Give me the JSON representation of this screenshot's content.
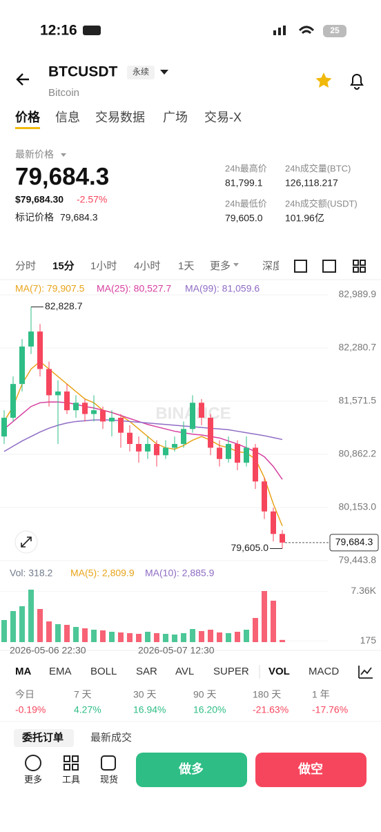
{
  "status": {
    "time": "12:16",
    "battery": "25"
  },
  "header": {
    "symbol": "BTCUSDT",
    "tag": "永续",
    "name": "Bitcoin"
  },
  "tabs": [
    "价格",
    "信息",
    "交易数据",
    "广场",
    "交易-X"
  ],
  "price": {
    "label": "最新价格",
    "last": "79,684.3",
    "usd": "$79,684.30",
    "change": "-2.57%",
    "mark_label": "标记价格",
    "mark": "79,684.3"
  },
  "stats": [
    [
      "24h最高价",
      "81,799.1"
    ],
    [
      "24h成交量(BTC)",
      "126,118.217"
    ],
    [
      "24h最低价",
      "79,605.0"
    ],
    [
      "24h成交额(USDT)",
      "101.96亿"
    ]
  ],
  "intervals": [
    "分时",
    "15分",
    "1小时",
    "4小时",
    "1天",
    "更多",
    "深度图"
  ],
  "chart_data": [
    {
      "type": "candlestick",
      "watermark": "BINANCE",
      "up_color": "#2ebd85",
      "down_color": "#f6465d",
      "ylim": [
        79370,
        83054
      ],
      "yticks": [
        {
          "value": 82989.9,
          "label": "82,989.9"
        },
        {
          "value": 82280.7,
          "label": "82,280.7"
        },
        {
          "value": 81571.5,
          "label": "81,571.5"
        },
        {
          "value": 80862.2,
          "label": "80,862.2"
        },
        {
          "value": 80153.0,
          "label": "80,153.0"
        },
        {
          "value": 79443.8,
          "label": "79,443.8"
        }
      ],
      "open": [
        81100,
        81350,
        81800,
        82300,
        82500,
        82000,
        81650,
        81700,
        81450,
        81550,
        81400,
        81450,
        81300,
        81350,
        81150,
        81000,
        80900,
        81000,
        80850,
        80950,
        81000,
        81200,
        81550,
        81350,
        80950,
        80800,
        81000,
        80750,
        80950,
        80500,
        80100,
        79800
      ],
      "high": [
        81450,
        81900,
        82400,
        82828.7,
        82600,
        82100,
        81850,
        81800,
        81650,
        81600,
        81650,
        81500,
        81450,
        81400,
        81250,
        81100,
        81100,
        81050,
        81050,
        81100,
        81300,
        81650,
        81600,
        81400,
        81050,
        81100,
        81050,
        81100,
        81000,
        80550,
        80150,
        79850
      ],
      "low": [
        81000,
        81300,
        81700,
        82200,
        81900,
        81500,
        81000,
        81400,
        81350,
        81300,
        81300,
        81200,
        81100,
        80950,
        80900,
        80750,
        80800,
        80700,
        80800,
        80900,
        80950,
        81150,
        81250,
        80850,
        80700,
        80750,
        80650,
        80700,
        80400,
        80000,
        79700,
        79605.0
      ],
      "close": [
        81350,
        81800,
        82300,
        82500,
        82000,
        81650,
        81700,
        81450,
        81550,
        81400,
        81450,
        81300,
        81350,
        81150,
        81000,
        80900,
        81000,
        80850,
        80950,
        81000,
        81200,
        81550,
        81350,
        80950,
        80800,
        81000,
        80750,
        80950,
        80500,
        80100,
        79800,
        79684.3
      ],
      "ma": [
        {
          "name": "MA(7): 79,907.5",
          "color": "#e8a317",
          "values": [
            81300,
            81500,
            81800,
            82000,
            82100,
            82000,
            81900,
            81800,
            81700,
            81600,
            81550,
            81450,
            81420,
            81380,
            81300,
            81200,
            81100,
            81000,
            80950,
            80930,
            80980,
            81050,
            81100,
            81050,
            80980,
            80950,
            80900,
            80880,
            80800,
            80550,
            80200,
            79907.5
          ]
        },
        {
          "name": "MA(25): 80,527.7",
          "color": "#d63ea0",
          "values": [
            81200,
            81300,
            81400,
            81500,
            81550,
            81560,
            81560,
            81550,
            81530,
            81500,
            81480,
            81450,
            81420,
            81380,
            81340,
            81300,
            81260,
            81230,
            81200,
            81170,
            81150,
            81130,
            81120,
            81100,
            81080,
            81040,
            81000,
            80950,
            80900,
            80830,
            80700,
            80527.7
          ]
        },
        {
          "name": "MA(99): 81,059.6",
          "color": "#8e6bc4",
          "values": [
            80900,
            80970,
            81040,
            81100,
            81160,
            81210,
            81250,
            81280,
            81300,
            81310,
            81320,
            81320,
            81320,
            81310,
            81300,
            81290,
            81280,
            81270,
            81260,
            81250,
            81240,
            81230,
            81220,
            81210,
            81200,
            81190,
            81170,
            81150,
            81130,
            81110,
            81085,
            81059.6
          ]
        }
      ],
      "annotations": {
        "high": "82,828.7",
        "low": "79,605.0",
        "last": "79,684.3"
      }
    },
    {
      "type": "bar",
      "legend": [
        {
          "name": "Vol: 318.2",
          "color": "#707a8a"
        },
        {
          "name": "MA(5): 2,809.9",
          "color": "#e8a317"
        },
        {
          "name": "MA(10): 2,885.9",
          "color": "#8e6bc4"
        }
      ],
      "ylim": [
        0,
        8000
      ],
      "yticks": [
        {
          "value": 7360,
          "label": "7.36K"
        },
        175
      ],
      "values": [
        3200,
        4500,
        5200,
        7600,
        4800,
        3000,
        2600,
        2500,
        2200,
        2000,
        1800,
        1700,
        1500,
        1400,
        1300,
        1200,
        1500,
        1300,
        1200,
        1100,
        1300,
        1900,
        1600,
        1800,
        1400,
        1300,
        1500,
        1800,
        3500,
        7400,
        6000,
        318.2
      ]
    }
  ],
  "x_labels": [
    "2026-05-06 22:30",
    "2026-05-07 12:30"
  ],
  "indicators": [
    "MA",
    "EMA",
    "BOLL",
    "SAR",
    "AVL",
    "SUPER",
    "VOL",
    "MACD"
  ],
  "performance": [
    [
      "今日",
      "-0.19%"
    ],
    [
      "7 天",
      "4.27%"
    ],
    [
      "30 天",
      "16.94%"
    ],
    [
      "90 天",
      "16.20%"
    ],
    [
      "180 天",
      "-21.63%"
    ],
    [
      "1 年",
      "-17.76%"
    ]
  ],
  "order_tabs": [
    "委托订单",
    "最新成交"
  ],
  "bottom": {
    "tools": [
      "更多",
      "工具",
      "现货"
    ],
    "long": "做多",
    "short": "做空"
  }
}
